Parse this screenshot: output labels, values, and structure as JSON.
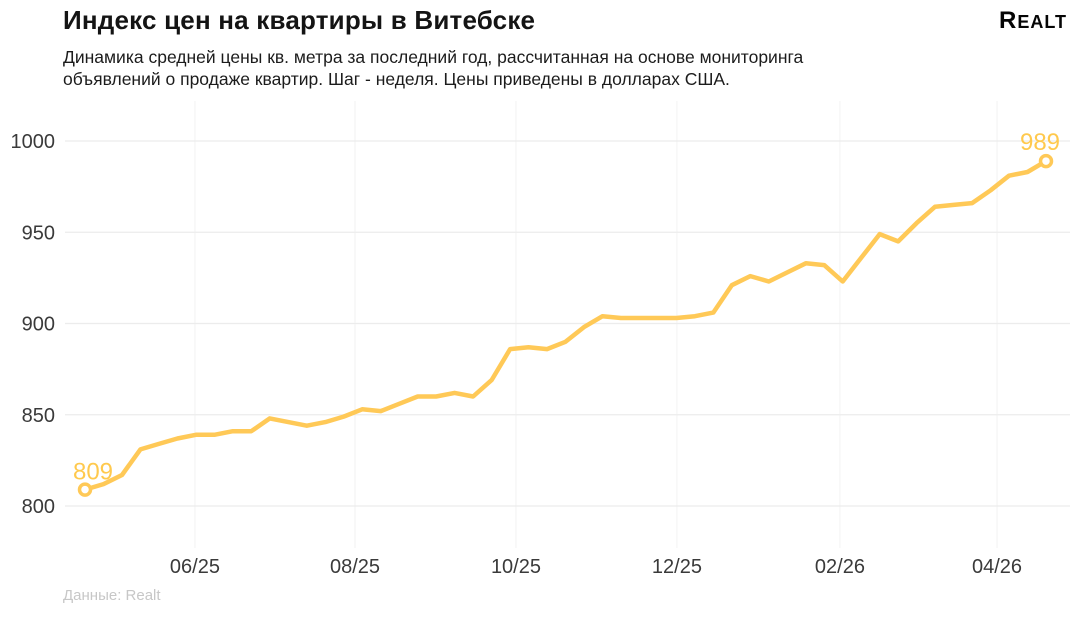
{
  "header": {
    "title": "Индекс цен на квартиры в Витебске",
    "subtitle_line1": "Динамика средней цены кв. метра за последний год, рассчитанная на основе мониторинга",
    "subtitle_line2": "объявлений о продаже квартир. Шаг - неделя. Цены приведены в долларах США.",
    "logo_first_letter": "R",
    "logo_rest": "ealt"
  },
  "footer": {
    "source": "Данные: Realt"
  },
  "colors": {
    "line": "#FFC957",
    "endpoint_label": "#FFC94D",
    "marker_fill": "#ffffff",
    "grid_horizontal": "#ececec",
    "grid_vertical": "#f4f4f4",
    "axis_text": "#3a3a3a"
  },
  "chart_data": {
    "type": "line",
    "title": "Индекс цен на квартиры в Витебске",
    "series_name": "Средняя цена кв. метра, USD",
    "step": "неделя",
    "values": [
      809,
      812,
      817,
      831,
      834,
      837,
      839,
      839,
      841,
      841,
      848,
      846,
      844,
      846,
      849,
      853,
      852,
      856,
      860,
      860,
      862,
      860,
      869,
      886,
      887,
      886,
      890,
      898,
      904,
      903,
      903,
      903,
      903,
      904,
      906,
      921,
      926,
      923,
      928,
      933,
      932,
      923,
      936,
      949,
      945,
      955,
      964,
      965,
      966,
      973,
      981,
      983,
      989
    ],
    "x_tick_labels": [
      "06/25",
      "08/25",
      "10/25",
      "12/25",
      "02/26",
      "04/26"
    ],
    "x_tick_indices": [
      5.95,
      14.61,
      23.32,
      32.03,
      40.85,
      49.35
    ],
    "y_ticks": [
      800,
      850,
      900,
      950,
      1000
    ],
    "ylim": [
      800,
      1000
    ],
    "grid": true,
    "legend": "none",
    "endpoint_labels": {
      "first": "809",
      "last": "989"
    }
  }
}
